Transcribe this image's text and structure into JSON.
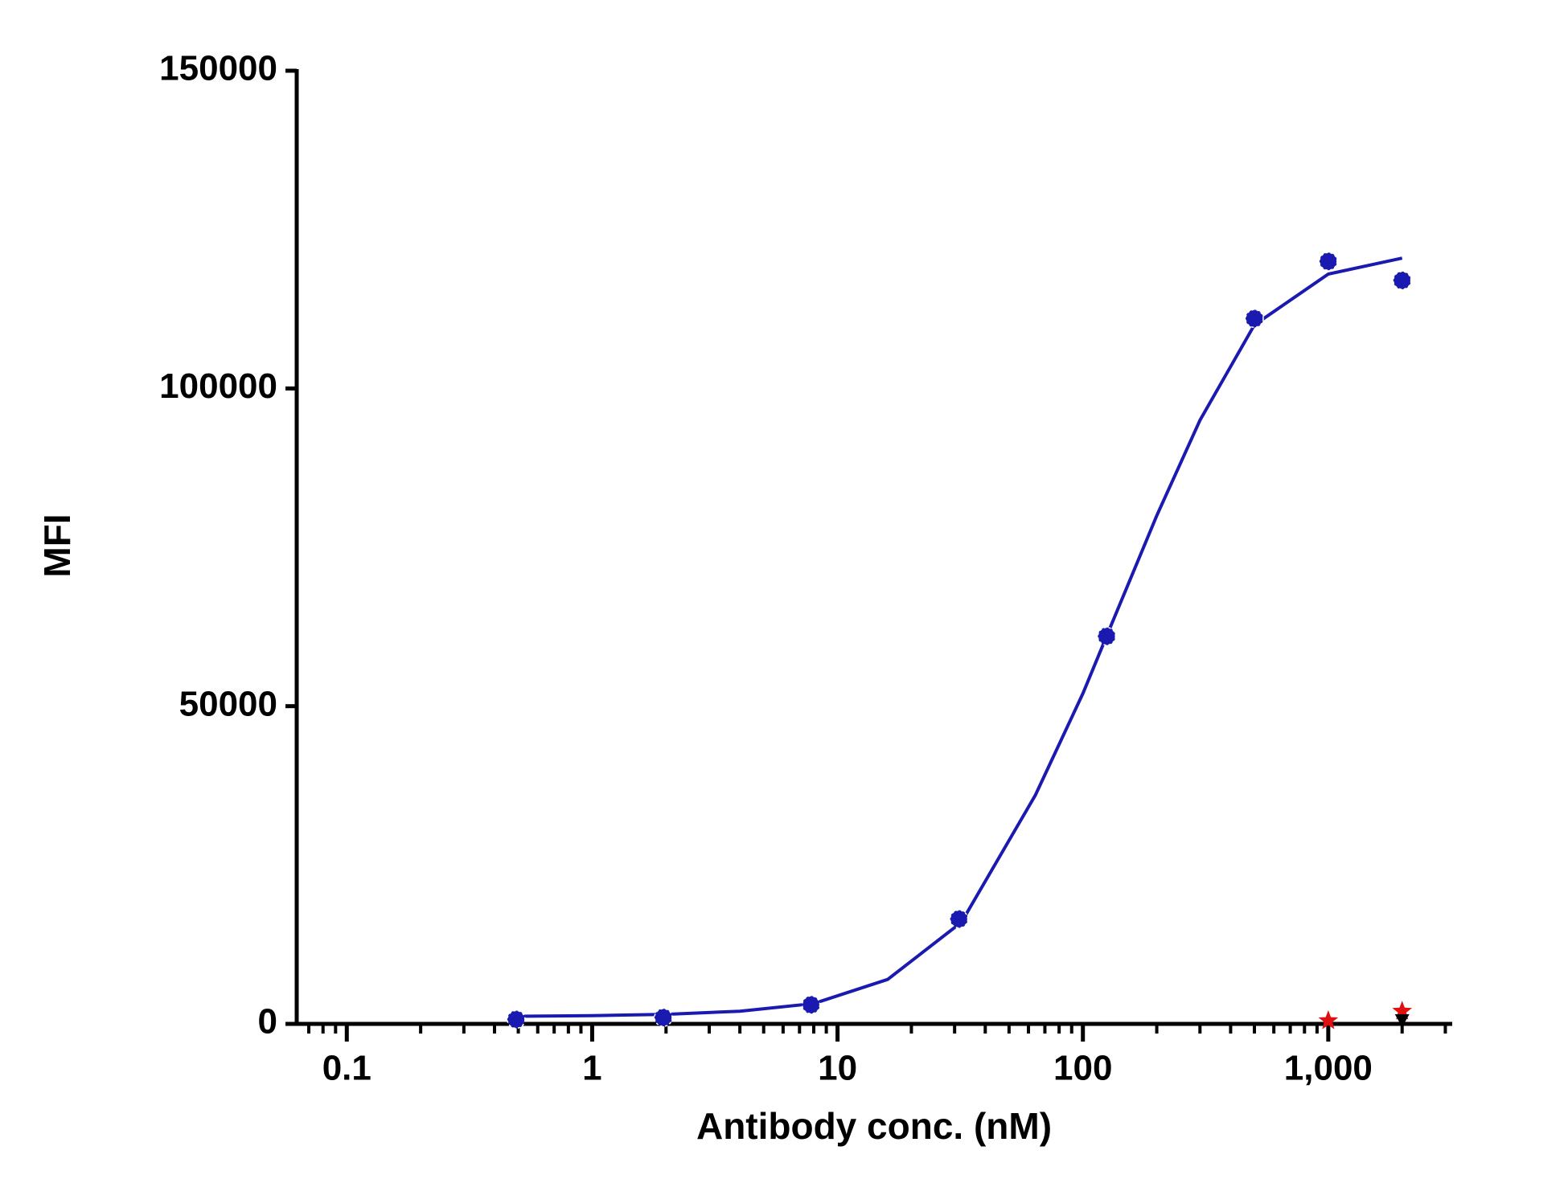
{
  "chart_data": {
    "type": "scatter",
    "x_label": "Antibody conc. (nM)",
    "y_label": "MFI",
    "xscale": "log",
    "xlim": [
      0.0625,
      3200
    ],
    "ylim": [
      0,
      150000
    ],
    "xticks": [
      0.1,
      1,
      10,
      100,
      {
        "value": 1000,
        "label": "1,000"
      }
    ],
    "yticks": [
      0,
      50000,
      100000,
      150000
    ],
    "series": [
      {
        "color": "#1a1ab0",
        "mode": "line",
        "x": [
          0.5,
          1,
          2,
          4,
          8,
          16,
          32,
          64,
          100,
          128,
          200,
          300,
          500,
          1000,
          2000
        ],
        "values": [
          1200,
          1300,
          1500,
          2000,
          3200,
          7000,
          16000,
          36000,
          52000,
          62000,
          80000,
          95000,
          110000,
          118000,
          120500
        ]
      },
      {
        "color": "#1a1ab0",
        "mode": "marker",
        "marker": "circle",
        "x": [
          0.49,
          1.95,
          7.8,
          31.25,
          125,
          500,
          1000,
          2000
        ],
        "values": [
          700,
          1000,
          3000,
          16500,
          61000,
          111000,
          120000,
          117000
        ]
      },
      {
        "color": "#e01010",
        "mode": "marker",
        "marker": "star",
        "x": [
          1000,
          2000
        ],
        "values": [
          500,
          2000
        ]
      },
      {
        "color": "#000000",
        "mode": "marker",
        "marker": "triangle",
        "x": [
          2000
        ],
        "values": [
          500
        ]
      }
    ]
  }
}
